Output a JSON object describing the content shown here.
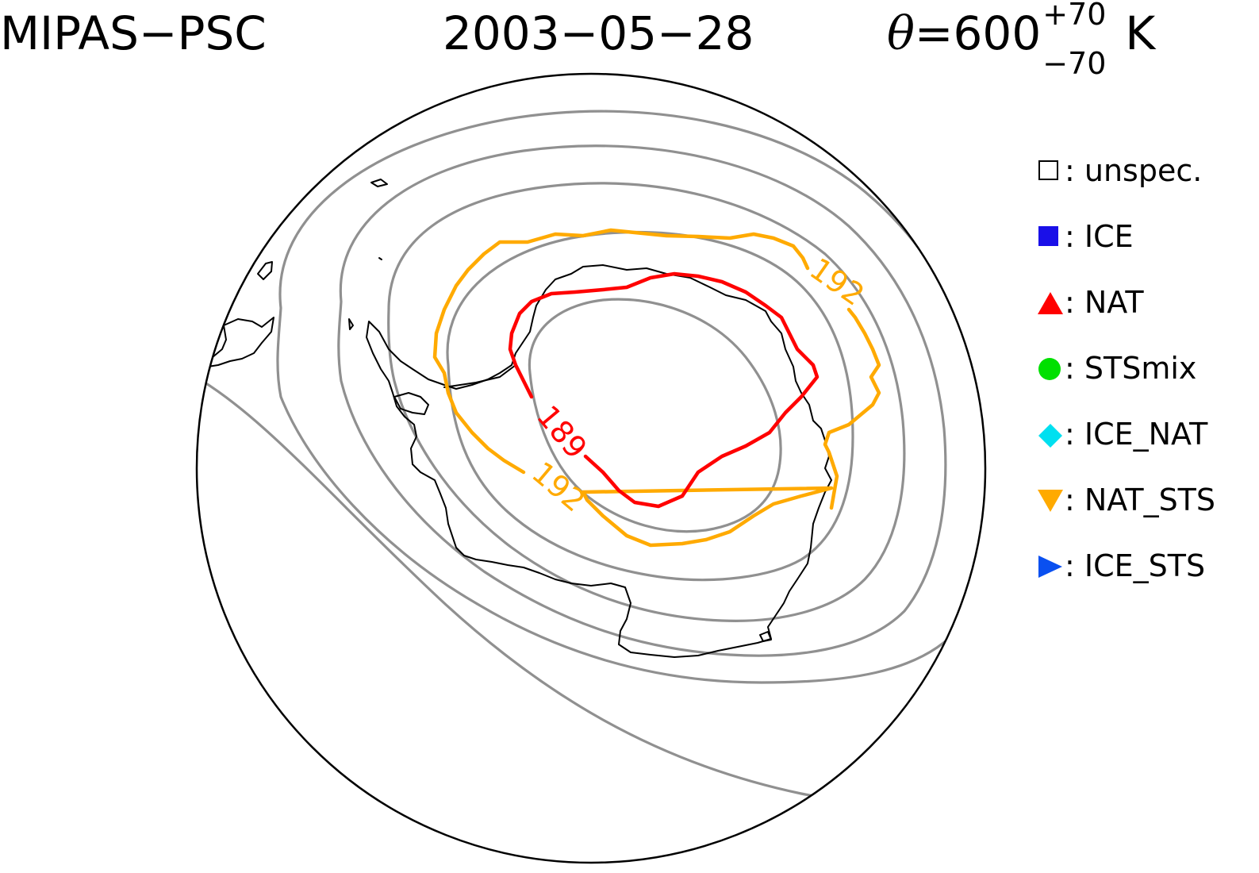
{
  "header": {
    "instrument": "MIPAS−PSC",
    "date": "2003−05−28",
    "theta_symbol": "θ",
    "theta_value": "=600",
    "theta_sup": "+70",
    "theta_sub": "−70",
    "theta_unit": "K"
  },
  "legend": {
    "items": [
      {
        "label": ": unspec.",
        "symbol": "square-open",
        "color": "#000000"
      },
      {
        "label": ": ICE",
        "symbol": "square",
        "color": "#1a10e8"
      },
      {
        "label": ": NAT",
        "symbol": "triangle-up",
        "color": "#ff0000"
      },
      {
        "label": ": STSmix",
        "symbol": "circle",
        "color": "#00e000"
      },
      {
        "label": ": ICE_NAT",
        "symbol": "diamond",
        "color": "#00e0f0"
      },
      {
        "label": ": NAT_STS",
        "symbol": "triangle-down",
        "color": "#ffaa00"
      },
      {
        "label": ": ICE_STS",
        "symbol": "triangle-right",
        "color": "#0a50f0"
      }
    ]
  },
  "contours": {
    "temperature_unit": "K",
    "labels": [
      {
        "value": "189",
        "color": "#ff0000"
      },
      {
        "value": "192",
        "color": "#ffaa00"
      },
      {
        "value": "192",
        "color": "#ffaa00"
      }
    ]
  },
  "colors": {
    "nat_sts_contour": "#ffaa00",
    "nat_contour": "#ff0000",
    "background_contours": "#909090",
    "coastline": "#000000"
  }
}
